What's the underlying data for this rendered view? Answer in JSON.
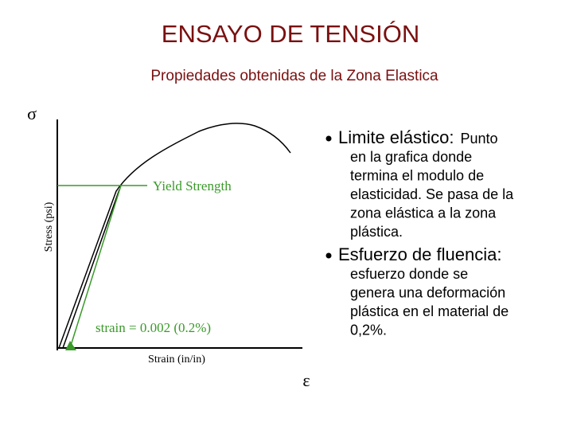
{
  "header": {
    "title": "ENSAYO DE TENSIÓN",
    "subtitle": "Propiedades obtenidas de la Zona Elastica"
  },
  "figure": {
    "sigma": "σ",
    "epsilon": "ε",
    "y_label": "Stress (psi)",
    "x_label": "Strain (in/in)",
    "yield_label": "Yield Strength",
    "offset_label": "strain = 0.002 (0.2%)"
  },
  "bullets": [
    {
      "term": "Limite elástico:",
      "lines": [
        "Punto",
        "en la grafica donde",
        "termina el modulo de",
        "elasticidad. Se pasa de la",
        "zona elástica a la zona",
        "plástica."
      ]
    },
    {
      "term": "Esfuerzo de fluencia:",
      "lines": [
        "esfuerzo donde se",
        "genera una deformación",
        "plástica en el material de",
        "0,2%."
      ]
    }
  ]
}
